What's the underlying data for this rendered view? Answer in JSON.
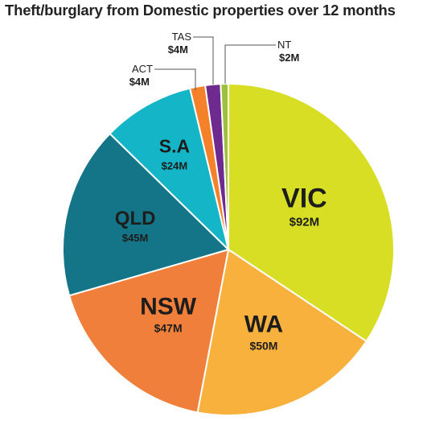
{
  "chart_data": {
    "type": "pie",
    "title": "Theft/burglary from Domestic properties over 12 months",
    "slices": [
      {
        "label": "VIC",
        "value": 92,
        "value_label": "$92M",
        "color": "#d8de24"
      },
      {
        "label": "WA",
        "value": 50,
        "value_label": "$50M",
        "color": "#f9b13e"
      },
      {
        "label": "NSW",
        "value": 47,
        "value_label": "$47M",
        "color": "#f07f3b"
      },
      {
        "label": "QLD",
        "value": 45,
        "value_label": "$45M",
        "color": "#137587"
      },
      {
        "label": "S.A",
        "value": 24,
        "value_label": "$24M",
        "color": "#14b5c6"
      },
      {
        "label": "ACT",
        "value": 4,
        "value_label": "$4M",
        "color": "#f5822a"
      },
      {
        "label": "TAS",
        "value": 4,
        "value_label": "$4M",
        "color": "#6e2a8e"
      },
      {
        "label": "NT",
        "value": 2,
        "value_label": "$2M",
        "color": "#9dc13c"
      }
    ]
  }
}
